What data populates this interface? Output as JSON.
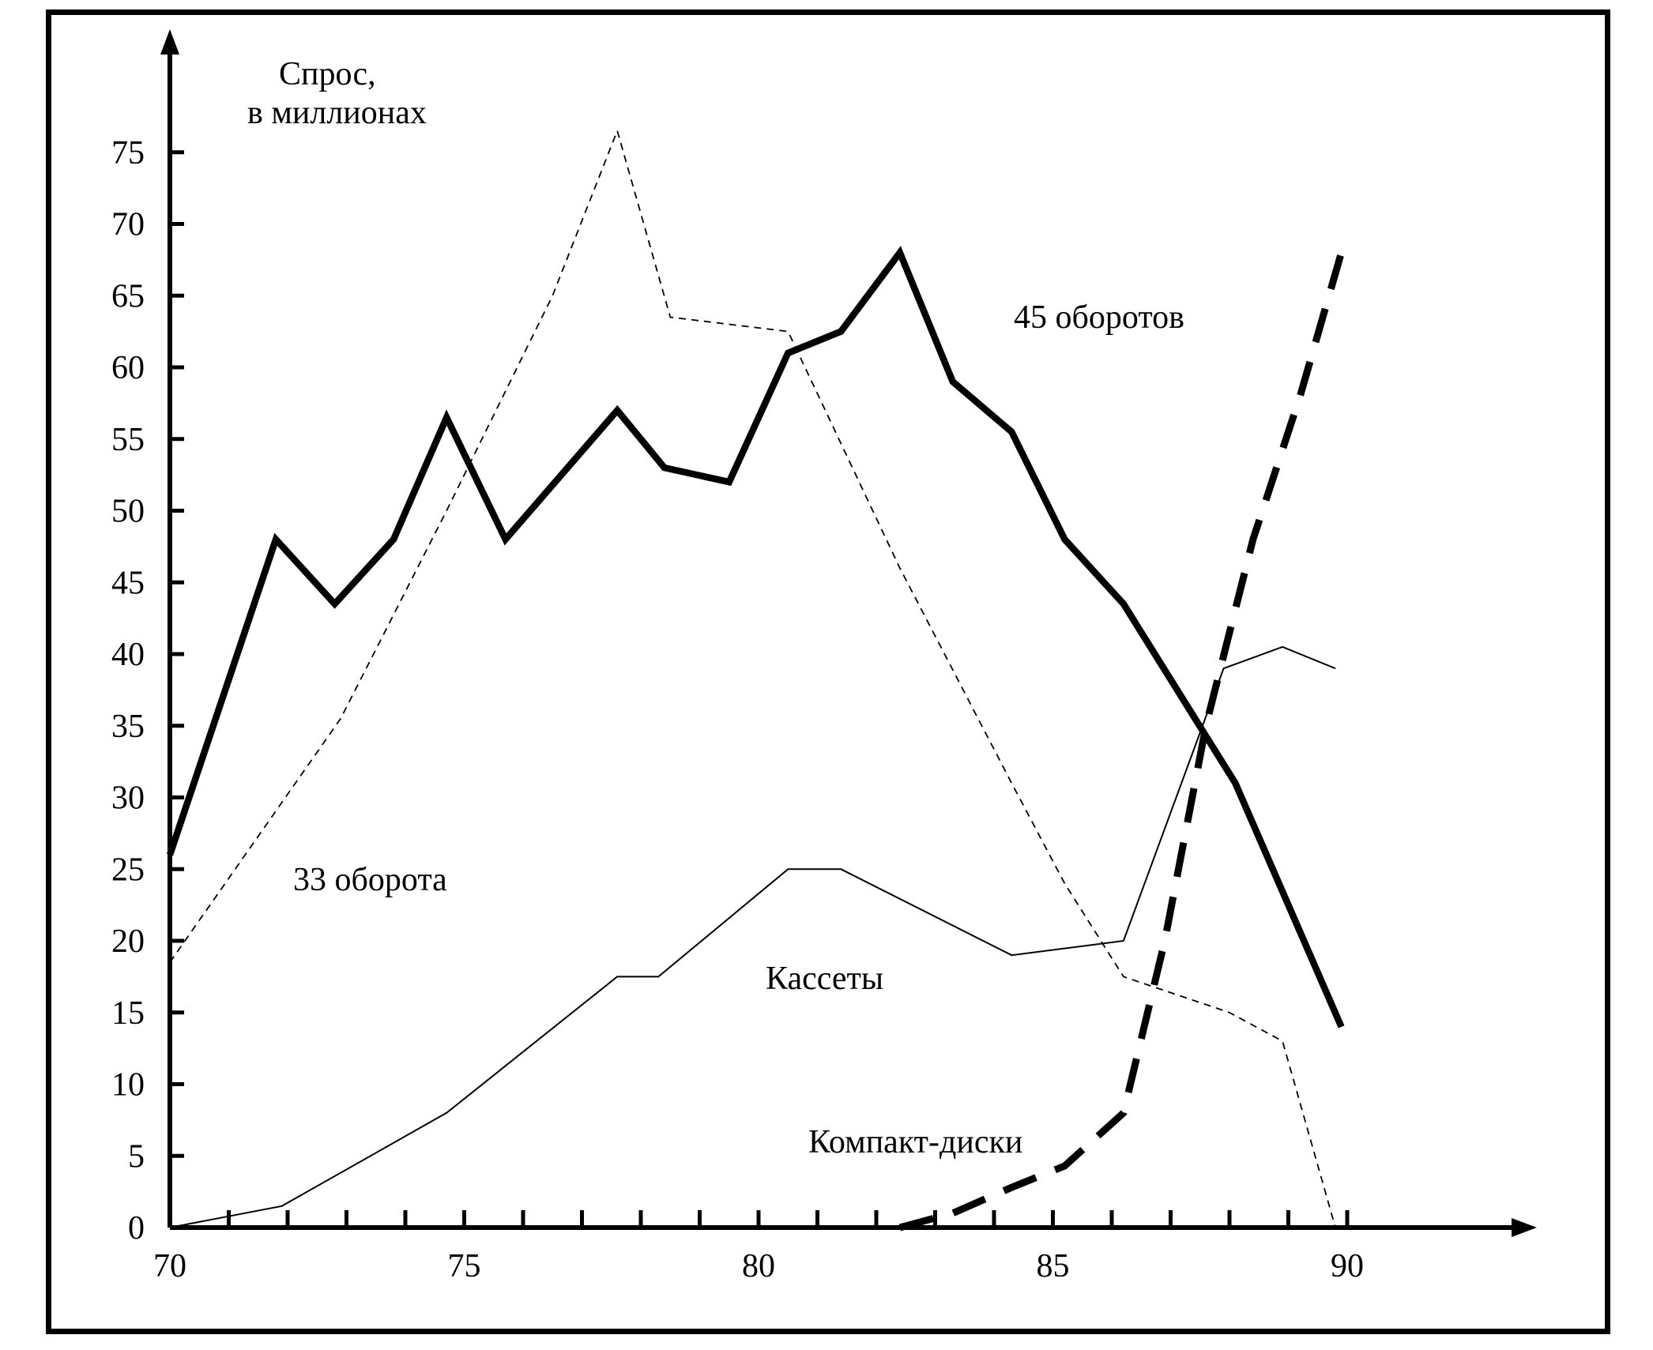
{
  "chart_data": {
    "type": "line",
    "ylabel": [
      "Спрос,",
      "в миллионах"
    ],
    "xlim": [
      70,
      92
    ],
    "ylim": [
      0,
      78
    ],
    "xticks": [
      70,
      75,
      80,
      85,
      90
    ],
    "xminor": [
      71,
      72,
      73,
      74,
      76,
      77,
      78,
      79,
      81,
      82,
      83,
      84,
      86,
      87,
      88,
      89
    ],
    "yticks": [
      0,
      5,
      10,
      15,
      20,
      25,
      30,
      35,
      40,
      45,
      50,
      55,
      60,
      65,
      70,
      75
    ],
    "grid": false,
    "series": [
      {
        "name": "45 оборотов",
        "style": "thick-solid",
        "color": "#000000",
        "x": [
          70,
          71.8,
          72.8,
          73.8,
          74.7,
          75.7,
          77.6,
          78.4,
          79.5,
          80.5,
          81.4,
          82.4,
          83.3,
          84.3,
          85.2,
          86.2,
          88.1,
          89.9
        ],
        "y": [
          26,
          48,
          43.5,
          48,
          56.5,
          48,
          57,
          53,
          52,
          61,
          62.5,
          68,
          59,
          55.5,
          48,
          43.5,
          31,
          14
        ]
      },
      {
        "name": "33 оборота",
        "style": "thin-dashed",
        "color": "#000000",
        "x": [
          70,
          72.9,
          74.7,
          76.5,
          77.6,
          78.5,
          80.5,
          82.4,
          84.3,
          85.2,
          86.2,
          88,
          88.9,
          89.8
        ],
        "y": [
          18.5,
          35.5,
          50,
          65,
          76.5,
          63.5,
          62.5,
          46,
          31,
          24,
          17.5,
          15,
          13,
          0
        ]
      },
      {
        "name": "Кассеты",
        "style": "thin-solid",
        "color": "#000000",
        "x": [
          70,
          71.9,
          74.7,
          77.6,
          78.3,
          80.5,
          81.4,
          84.3,
          86.2,
          87.9,
          88.9,
          89.8
        ],
        "y": [
          0,
          1.5,
          8,
          17.5,
          17.5,
          25,
          25,
          19,
          20,
          39,
          40.5,
          39
        ]
      },
      {
        "name": "Компакт-диски",
        "style": "thick-dashed",
        "color": "#000000",
        "x": [
          82.4,
          83.3,
          84.3,
          85.2,
          86.2,
          86.9,
          87.6,
          88.4,
          89.2,
          89.9
        ],
        "y": [
          0,
          1,
          2.8,
          4.3,
          8,
          20,
          35,
          48,
          58,
          68
        ]
      }
    ],
    "annotations": [
      "45 оборотов",
      "33 оборота",
      "Кассеты",
      "Компакт-диски"
    ]
  }
}
